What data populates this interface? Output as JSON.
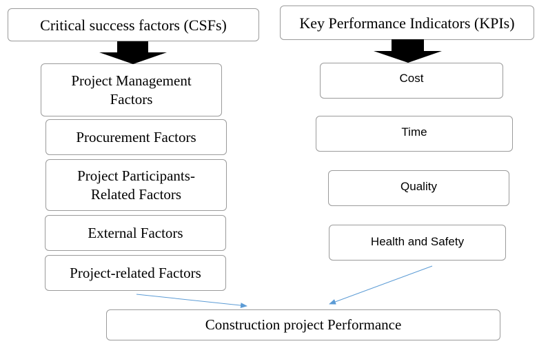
{
  "csf_header": "Critical success factors (CSFs)",
  "kpi_header": "Key Performance Indicators (KPIs)",
  "csf_items": [
    "Project Management Factors",
    "Procurement Factors",
    "Project Participants-Related Factors",
    "External Factors",
    "Project-related Factors"
  ],
  "kpi_items": [
    "Cost",
    "Time",
    "Quality",
    "Health and Safety"
  ],
  "outcome": "Construction project Performance",
  "colors": {
    "connector": "#5b9bd5",
    "block_arrow": "#000000",
    "border": "#9a9a9a"
  }
}
